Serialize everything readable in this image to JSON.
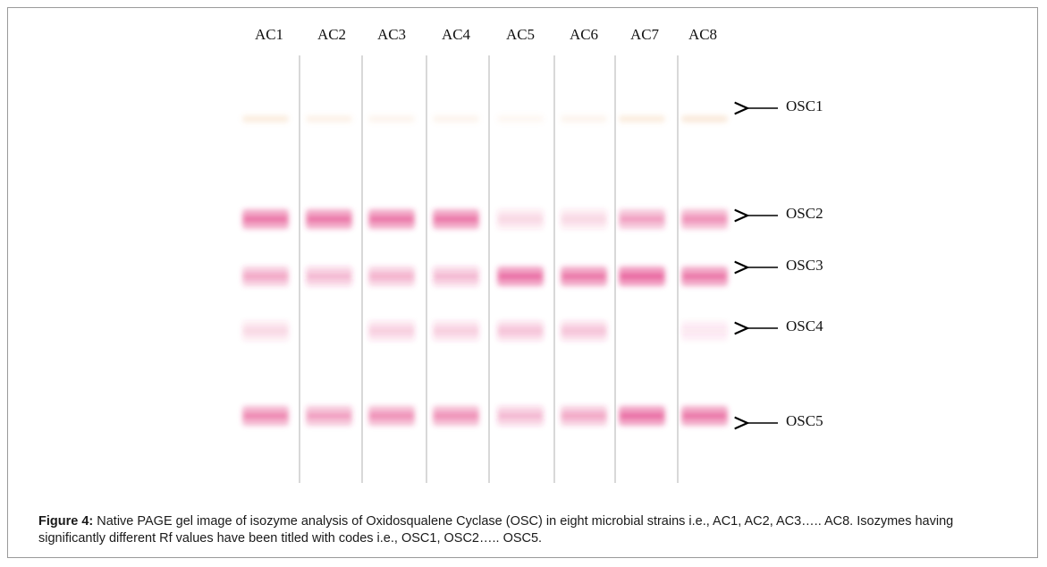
{
  "lanes": [
    "AC1",
    "AC2",
    "AC3",
    "AC4",
    "AC5",
    "AC6",
    "AC7",
    "AC8"
  ],
  "bands": [
    "OSC1",
    "OSC2",
    "OSC3",
    "OSC4",
    "OSC5"
  ],
  "caption": {
    "label": "Figure 4:",
    "text": "Native PAGE gel image of isozyme analysis of Oxidosqualene Cyclase (OSC) in eight microbial strains i.e., AC1, AC2, AC3….. AC8. Isozymes having significantly different Rf values have been titled with codes i.e., OSC1, OSC2….. OSC5."
  }
}
